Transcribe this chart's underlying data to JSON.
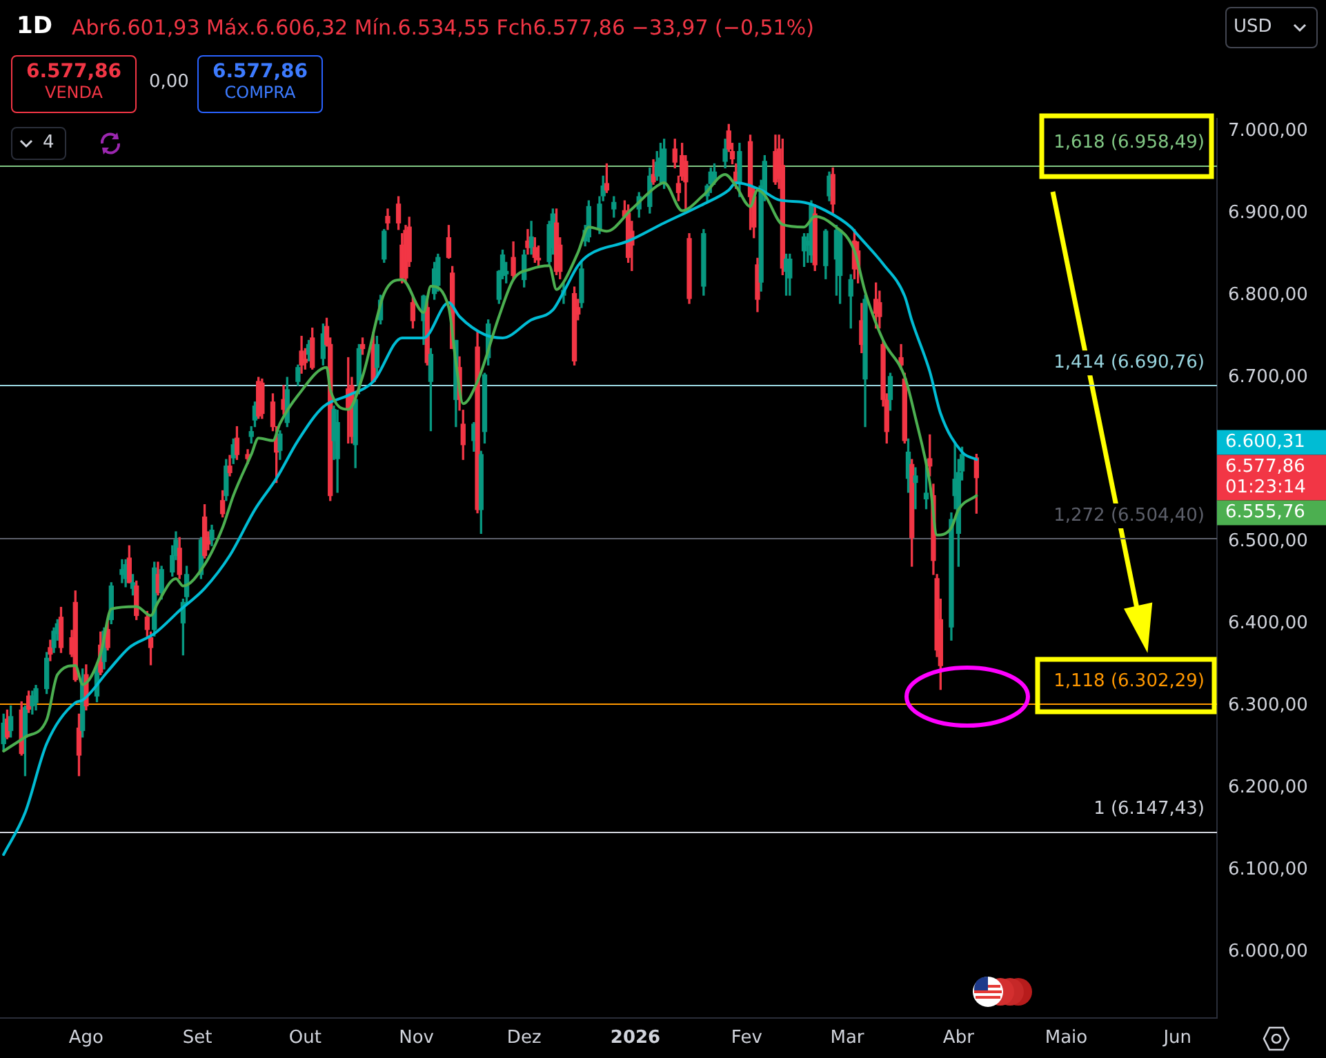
{
  "chart_data": {
    "type": "candlestick",
    "title": "1D",
    "subtitle": "Abr6.601,93 Máx.6.606,32 Mín.6.534,55 Fch6.577,86 −33,97 (−0,51%)",
    "x": [
      "2025-07-09",
      "2025-07-10",
      "2025-07-11",
      "2025-07-14",
      "2025-07-15",
      "2025-07-16",
      "2025-07-17",
      "2025-07-18",
      "2025-07-21",
      "2025-07-22",
      "2025-07-23",
      "2025-07-24",
      "2025-07-25",
      "2025-07-28",
      "2025-07-29",
      "2025-07-30",
      "2025-07-31",
      "2025-08-01",
      "2025-08-04",
      "2025-08-05",
      "2025-08-06",
      "2025-08-07",
      "2025-08-08",
      "2025-08-11",
      "2025-08-12",
      "2025-08-13",
      "2025-08-14",
      "2025-08-15",
      "2025-08-18",
      "2025-08-19",
      "2025-08-20",
      "2025-08-21",
      "2025-08-22",
      "2025-08-25",
      "2025-08-26",
      "2025-08-27",
      "2025-08-28",
      "2025-08-29",
      "2025-09-02",
      "2025-09-03",
      "2025-09-04",
      "2025-09-05",
      "2025-09-08",
      "2025-09-09",
      "2025-09-10",
      "2025-09-11",
      "2025-09-12",
      "2025-09-15",
      "2025-09-16",
      "2025-09-17",
      "2025-09-18",
      "2025-09-19",
      "2025-09-22",
      "2025-09-23",
      "2025-09-24",
      "2025-09-25",
      "2025-09-26",
      "2025-09-29",
      "2025-09-30",
      "2025-10-01",
      "2025-10-02",
      "2025-10-03",
      "2025-10-06",
      "2025-10-07",
      "2025-10-08",
      "2025-10-09",
      "2025-10-10",
      "2025-10-13",
      "2025-10-14",
      "2025-10-15",
      "2025-10-16",
      "2025-10-17",
      "2025-10-20",
      "2025-10-21",
      "2025-10-22",
      "2025-10-23",
      "2025-10-24",
      "2025-10-27",
      "2025-10-28",
      "2025-10-29",
      "2025-10-30",
      "2025-10-31",
      "2025-11-03",
      "2025-11-04",
      "2025-11-05",
      "2025-11-06",
      "2025-11-07",
      "2025-11-10",
      "2025-11-11",
      "2025-11-12",
      "2025-11-13",
      "2025-11-14",
      "2025-11-17",
      "2025-11-18",
      "2025-11-19",
      "2025-11-20",
      "2025-11-21",
      "2025-11-24",
      "2025-11-25",
      "2025-11-26",
      "2025-11-28",
      "2025-12-01",
      "2025-12-02",
      "2025-12-03",
      "2025-12-04",
      "2025-12-05",
      "2025-12-08",
      "2025-12-09",
      "2025-12-10",
      "2025-12-11",
      "2025-12-12",
      "2025-12-15",
      "2025-12-16",
      "2025-12-17",
      "2025-12-18",
      "2025-12-19",
      "2025-12-22",
      "2025-12-23",
      "2025-12-24",
      "2025-12-26",
      "2025-12-29",
      "2025-12-30",
      "2025-12-31",
      "2026-01-02",
      "2026-01-05",
      "2026-01-06",
      "2026-01-07",
      "2026-01-08",
      "2026-01-09",
      "2026-01-12",
      "2026-01-13",
      "2026-01-14",
      "2026-01-15",
      "2026-01-16",
      "2026-01-20",
      "2026-01-21",
      "2026-01-22",
      "2026-01-23",
      "2026-01-26",
      "2026-01-27",
      "2026-01-28",
      "2026-01-29",
      "2026-01-30",
      "2026-02-02",
      "2026-02-03",
      "2026-02-04",
      "2026-02-05",
      "2026-02-06",
      "2026-02-09",
      "2026-02-10",
      "2026-02-11",
      "2026-02-12",
      "2026-02-13",
      "2026-02-17",
      "2026-02-18",
      "2026-02-19",
      "2026-02-20",
      "2026-02-23",
      "2026-02-24",
      "2026-02-25",
      "2026-02-26",
      "2026-02-27",
      "2026-03-02",
      "2026-03-03",
      "2026-03-04",
      "2026-03-05",
      "2026-03-06",
      "2026-03-09",
      "2026-03-10",
      "2026-03-11",
      "2026-03-12",
      "2026-03-13",
      "2026-03-16",
      "2026-03-17",
      "2026-03-18",
      "2026-03-19",
      "2026-03-20",
      "2026-03-23",
      "2026-03-24",
      "2026-03-25",
      "2026-03-26",
      "2026-03-27",
      "2026-03-30",
      "2026-03-31",
      "2026-04-01",
      "2026-04-02",
      "2026-04-06"
    ],
    "ohlc": [
      [
        6254,
        6290,
        6245,
        6279
      ],
      [
        6284,
        6295,
        6260,
        6262
      ],
      [
        6270,
        6300,
        6262,
        6287
      ],
      [
        6295,
        6305,
        6240,
        6242
      ],
      [
        6262,
        6300,
        6215,
        6298
      ],
      [
        6312,
        6318,
        6292,
        6296
      ],
      [
        6300,
        6318,
        6290,
        6312
      ],
      [
        6304,
        6325,
        6295,
        6321
      ],
      [
        6321,
        6365,
        6315,
        6358
      ],
      [
        6371,
        6380,
        6355,
        6363
      ],
      [
        6371,
        6395,
        6365,
        6391
      ],
      [
        6388,
        6405,
        6380,
        6400
      ],
      [
        6408,
        6420,
        6365,
        6371
      ],
      [
        6383,
        6392,
        6360,
        6363
      ],
      [
        6426,
        6440,
        6330,
        6332
      ],
      [
        6273,
        6290,
        6215,
        6240
      ],
      [
        6270,
        6345,
        6262,
        6329
      ],
      [
        6338,
        6350,
        6295,
        6300
      ],
      [
        6312,
        6350,
        6305,
        6346
      ],
      [
        6374,
        6390,
        6338,
        6341
      ],
      [
        6354,
        6395,
        6345,
        6391
      ],
      [
        6393,
        6405,
        6368,
        6371
      ],
      [
        6405,
        6450,
        6400,
        6446
      ],
      [
        6460,
        6478,
        6450,
        6466
      ],
      [
        6455,
        6478,
        6445,
        6472
      ],
      [
        6480,
        6495,
        6450,
        6450
      ],
      [
        6443,
        6460,
        6435,
        6450
      ],
      [
        6446,
        6452,
        6405,
        6410
      ],
      [
        6408,
        6415,
        6385,
        6393
      ],
      [
        6383,
        6390,
        6350,
        6371
      ],
      [
        6393,
        6475,
        6385,
        6468
      ],
      [
        6460,
        6475,
        6435,
        6438
      ],
      [
        6438,
        6470,
        6430,
        6466
      ],
      [
        6463,
        6495,
        6458,
        6483
      ],
      [
        6483,
        6512,
        6478,
        6502
      ],
      [
        6492,
        6505,
        6455,
        6460
      ],
      [
        6401,
        6430,
        6362,
        6426
      ],
      [
        6433,
        6470,
        6425,
        6460
      ],
      [
        6460,
        6505,
        6455,
        6502
      ],
      [
        6530,
        6545,
        6480,
        6483
      ],
      [
        6505,
        6512,
        6490,
        6497
      ],
      [
        6502,
        6520,
        6495,
        6514
      ],
      [
        6550,
        6562,
        6530,
        6534
      ],
      [
        6556,
        6600,
        6550,
        6592
      ],
      [
        6592,
        6605,
        6580,
        6584
      ],
      [
        6602,
        6625,
        6595,
        6618
      ],
      [
        6626,
        6640,
        6600,
        6606
      ],
      [
        6606,
        6612,
        6595,
        6601
      ],
      [
        6628,
        6640,
        6620,
        6634
      ],
      [
        6648,
        6670,
        6640,
        6665
      ],
      [
        6695,
        6700,
        6650,
        6653
      ],
      [
        6693,
        6698,
        6650,
        6656
      ],
      [
        6670,
        6680,
        6635,
        6640
      ],
      [
        6626,
        6640,
        6572,
        6609
      ],
      [
        6611,
        6635,
        6600,
        6631
      ],
      [
        6673,
        6690,
        6655,
        6661
      ],
      [
        6645,
        6700,
        6640,
        6685
      ],
      [
        6695,
        6715,
        6690,
        6712
      ],
      [
        6732,
        6750,
        6705,
        6715
      ],
      [
        6722,
        6735,
        6710,
        6718
      ],
      [
        6728,
        6745,
        6720,
        6740
      ],
      [
        6748,
        6760,
        6710,
        6712
      ],
      [
        6723,
        6765,
        6715,
        6753
      ],
      [
        6762,
        6772,
        6738,
        6740
      ],
      [
        6740,
        6748,
        6550,
        6556
      ],
      [
        6623,
        6665,
        6600,
        6661
      ],
      [
        6601,
        6660,
        6560,
        6645
      ],
      [
        6686,
        6724,
        6620,
        6661
      ],
      [
        6690,
        6700,
        6620,
        6628
      ],
      [
        6618,
        6680,
        6590,
        6673
      ],
      [
        6690,
        6740,
        6680,
        6735
      ],
      [
        6740,
        6748,
        6728,
        6735
      ],
      [
        6740,
        6755,
        6695,
        6695
      ],
      [
        6712,
        6750,
        6700,
        6740
      ],
      [
        6770,
        6800,
        6765,
        6794
      ],
      [
        6844,
        6880,
        6840,
        6878
      ],
      [
        6896,
        6905,
        6880,
        6888
      ],
      [
        6911,
        6920,
        6880,
        6888
      ],
      [
        6861,
        6875,
        6815,
        6821
      ],
      [
        6879,
        6885,
        6815,
        6821
      ],
      [
        6883,
        6895,
        6835,
        6841
      ],
      [
        6791,
        6800,
        6760,
        6769
      ],
      [
        6769,
        6800,
        6740,
        6799
      ],
      [
        6785,
        6795,
        6715,
        6718
      ],
      [
        6695,
        6735,
        6635,
        6728
      ],
      [
        6802,
        6840,
        6795,
        6832
      ],
      [
        6812,
        6850,
        6805,
        6846
      ],
      [
        6870,
        6885,
        6845,
        6846
      ],
      [
        6827,
        6835,
        6735,
        6735
      ],
      [
        6673,
        6745,
        6640,
        6745
      ],
      [
        6712,
        6725,
        6660,
        6673
      ],
      [
        6643,
        6660,
        6600,
        6618
      ],
      [
        6623,
        6645,
        6610,
        6643
      ],
      [
        6737,
        6755,
        6535,
        6539
      ],
      [
        6539,
        6610,
        6510,
        6606
      ],
      [
        6634,
        6705,
        6620,
        6703
      ],
      [
        6724,
        6770,
        6715,
        6765
      ],
      [
        6795,
        6830,
        6790,
        6829
      ],
      [
        6824,
        6855,
        6820,
        6849
      ],
      [
        6826,
        6840,
        6815,
        6829
      ],
      [
        6846,
        6865,
        6820,
        6824
      ],
      [
        6819,
        6855,
        6810,
        6849
      ],
      [
        6866,
        6880,
        6850,
        6858
      ],
      [
        6858,
        6890,
        6850,
        6871
      ],
      [
        6858,
        6870,
        6840,
        6846
      ],
      [
        6845,
        6860,
        6835,
        6843
      ],
      [
        6841,
        6890,
        6835,
        6886
      ],
      [
        6858,
        6905,
        6850,
        6899
      ],
      [
        6888,
        6905,
        6825,
        6829
      ],
      [
        6861,
        6870,
        6820,
        6829
      ],
      [
        6800,
        6815,
        6790,
        6806
      ],
      [
        6802,
        6810,
        6715,
        6720
      ],
      [
        6785,
        6795,
        6770,
        6777
      ],
      [
        6791,
        6840,
        6785,
        6832
      ],
      [
        6866,
        6885,
        6860,
        6879
      ],
      [
        6871,
        6915,
        6865,
        6908
      ],
      [
        6881,
        6920,
        6875,
        6911
      ],
      [
        6921,
        6945,
        6915,
        6933
      ],
      [
        6936,
        6960,
        6925,
        6928
      ],
      [
        6905,
        6920,
        6895,
        6913
      ],
      [
        6903,
        6915,
        6895,
        6896
      ],
      [
        6900,
        6910,
        6840,
        6846
      ],
      [
        6878,
        6890,
        6830,
        6861
      ],
      [
        6905,
        6925,
        6895,
        6920
      ],
      [
        6908,
        6955,
        6900,
        6945
      ],
      [
        6947,
        6965,
        6935,
        6938
      ],
      [
        6945,
        6975,
        6940,
        6962
      ],
      [
        6945,
        6985,
        6935,
        6967
      ],
      [
        6938,
        6990,
        6930,
        6978
      ],
      [
        6978,
        6990,
        6955,
        6962
      ],
      [
        6936,
        6945,
        6915,
        6925
      ],
      [
        6970,
        6985,
        6940,
        6945
      ],
      [
        6963,
        6970,
        6905,
        6938
      ],
      [
        6869,
        6875,
        6790,
        6796
      ],
      [
        6811,
        6880,
        6800,
        6875
      ],
      [
        6921,
        6935,
        6915,
        6933
      ],
      [
        6936,
        6955,
        6925,
        6950
      ],
      [
        6942,
        6960,
        6935,
        6950
      ],
      [
        6963,
        6990,
        6955,
        6978
      ],
      [
        7000,
        7008,
        6975,
        6978
      ],
      [
        6975,
        6985,
        6960,
        6966
      ],
      [
        6950,
        6960,
        6930,
        6938
      ],
      [
        6936,
        6985,
        6920,
        6975
      ],
      [
        6987,
        6995,
        6880,
        6920
      ],
      [
        6920,
        6930,
        6870,
        6883
      ],
      [
        6837,
        6845,
        6780,
        6795
      ],
      [
        6816,
        6940,
        6805,
        6933
      ],
      [
        6925,
        6970,
        6915,
        6963
      ],
      [
        6975,
        6995,
        6935,
        6938
      ],
      [
        6978,
        6995,
        6930,
        6942
      ],
      [
        6958,
        6990,
        6825,
        6833
      ],
      [
        6829,
        6850,
        6800,
        6844
      ],
      [
        6821,
        6850,
        6800,
        6844
      ],
      [
        6854,
        6875,
        6835,
        6871
      ],
      [
        6861,
        6875,
        6840,
        6866
      ],
      [
        6849,
        6915,
        6840,
        6911
      ],
      [
        6899,
        6910,
        6830,
        6837
      ],
      [
        6836,
        6880,
        6820,
        6878
      ],
      [
        6921,
        6950,
        6915,
        6945
      ],
      [
        6947,
        6955,
        6900,
        6911
      ],
      [
        6844,
        6885,
        6800,
        6879
      ],
      [
        6824,
        6880,
        6790,
        6879
      ],
      [
        6799,
        6825,
        6760,
        6819
      ],
      [
        6866,
        6880,
        6820,
        6832
      ],
      [
        6854,
        6865,
        6815,
        6832
      ],
      [
        6769,
        6790,
        6730,
        6740
      ],
      [
        6698,
        6800,
        6640,
        6795
      ],
      [
        6795,
        6815,
        6760,
        6778
      ],
      [
        6791,
        6805,
        6760,
        6774
      ],
      [
        6740,
        6745,
        6665,
        6673
      ],
      [
        6673,
        6680,
        6620,
        6634
      ],
      [
        6673,
        6705,
        6660,
        6701
      ],
      [
        6724,
        6740,
        6710,
        6715
      ],
      [
        6698,
        6705,
        6620,
        6623
      ],
      [
        6577,
        6625,
        6560,
        6609
      ],
      [
        6594,
        6600,
        6470,
        6505
      ],
      [
        6572,
        6590,
        6540,
        6580
      ],
      [
        6552,
        6600,
        6540,
        6559
      ],
      [
        6601,
        6630,
        6580,
        6592
      ],
      [
        6556,
        6570,
        6460,
        6477
      ],
      [
        6455,
        6460,
        6360,
        6368
      ],
      [
        6405,
        6430,
        6320,
        6349
      ],
      [
        6396,
        6535,
        6380,
        6527
      ],
      [
        6556,
        6620,
        6540,
        6576
      ],
      [
        6510,
        6600,
        6470,
        6584
      ],
      [
        6586,
        6615,
        6575,
        6606
      ],
      [
        6601.93,
        6606.32,
        6534.55,
        6577.86
      ]
    ],
    "series": [
      {
        "type": "line",
        "color": "#4caf50",
        "x": [
          "2025-07-09",
          "2025-07-15",
          "2025-07-21",
          "2025-07-24",
          "2025-07-29",
          "2025-07-31",
          "2025-08-05",
          "2025-08-08",
          "2025-08-15",
          "2025-08-19",
          "2025-08-21",
          "2025-08-26",
          "2025-08-28",
          "2025-09-03",
          "2025-09-08",
          "2025-09-11",
          "2025-09-16",
          "2025-09-18",
          "2025-09-22",
          "2025-09-24",
          "2025-09-29",
          "2025-10-07",
          "2025-10-08",
          "2025-10-13",
          "2025-10-17",
          "2025-10-23",
          "2025-10-28",
          "2025-11-03",
          "2025-11-05",
          "2025-11-10",
          "2025-11-12",
          "2025-11-14",
          "2025-11-18",
          "2025-11-24",
          "2025-11-28",
          "2025-12-03",
          "2025-12-08",
          "2025-12-10",
          "2025-12-12",
          "2025-12-16",
          "2025-12-19",
          "2025-12-24",
          "2025-12-31",
          "2026-01-07",
          "2026-01-09",
          "2026-01-14",
          "2026-01-20",
          "2026-01-26",
          "2026-01-29",
          "2026-02-02",
          "2026-02-04",
          "2026-02-06",
          "2026-02-11",
          "2026-02-17",
          "2026-02-20",
          "2026-02-25",
          "2026-03-03",
          "2026-03-06",
          "2026-03-11",
          "2026-03-17",
          "2026-03-20",
          "2026-03-24",
          "2026-03-26",
          "2026-03-30",
          "2026-04-01",
          "2026-04-06"
        ],
        "values": [
          6245,
          6262,
          6283,
          6338,
          6349,
          6326,
          6363,
          6418,
          6421,
          6410,
          6426,
          6455,
          6446,
          6472,
          6517,
          6556,
          6606,
          6626,
          6623,
          6644,
          6678,
          6712,
          6685,
          6661,
          6701,
          6802,
          6819,
          6779,
          6811,
          6785,
          6718,
          6668,
          6695,
          6774,
          6819,
          6832,
          6836,
          6807,
          6816,
          6852,
          6883,
          6878,
          6905,
          6933,
          6937,
          6903,
          6922,
          6947,
          6933,
          6908,
          6928,
          6922,
          6886,
          6883,
          6896,
          6886,
          6854,
          6804,
          6745,
          6701,
          6651,
          6572,
          6508,
          6517,
          6539,
          6556
        ]
      },
      {
        "type": "line",
        "color": "#00bcd4",
        "x": [
          "2025-07-09",
          "2025-07-15",
          "2025-07-21",
          "2025-07-29",
          "2025-07-31",
          "2025-08-07",
          "2025-08-13",
          "2025-08-20",
          "2025-08-27",
          "2025-09-03",
          "2025-09-10",
          "2025-09-17",
          "2025-09-23",
          "2025-09-29",
          "2025-10-06",
          "2025-10-13",
          "2025-10-20",
          "2025-10-28",
          "2025-11-03",
          "2025-11-10",
          "2025-11-13",
          "2025-11-20",
          "2025-11-25",
          "2025-12-03",
          "2025-12-09",
          "2025-12-12",
          "2025-12-16",
          "2025-12-19",
          "2025-12-30",
          "2026-01-09",
          "2026-01-20",
          "2026-01-27",
          "2026-01-29",
          "2026-02-05",
          "2026-02-10",
          "2026-02-17",
          "2026-02-23",
          "2026-03-02",
          "2026-03-04",
          "2026-03-11",
          "2026-03-17",
          "2026-03-19",
          "2026-03-24",
          "2026-03-27",
          "2026-04-02",
          "2026-04-06"
        ],
        "values": [
          6119,
          6170,
          6254,
          6304,
          6307,
          6342,
          6371,
          6388,
          6416,
          6443,
          6483,
          6539,
          6577,
          6623,
          6664,
          6678,
          6695,
          6748,
          6748,
          6791,
          6774,
          6752,
          6748,
          6770,
          6782,
          6804,
          6836,
          6849,
          6866,
          6888,
          6911,
          6928,
          6937,
          6928,
          6916,
          6913,
          6903,
          6883,
          6873,
          6838,
          6799,
          6769,
          6707,
          6656,
          6609,
          6600
        ]
      }
    ],
    "xlim": [
      "2025-07-08",
      "2026-06-12"
    ],
    "xticks": [
      {
        "value": "2025-08-01",
        "label": "Ago"
      },
      {
        "value": "2025-09-01",
        "label": "Set"
      },
      {
        "value": "2025-10-01",
        "label": "Out"
      },
      {
        "value": "2025-11-01",
        "label": "Nov"
      },
      {
        "value": "2025-12-01",
        "label": "Dez"
      },
      {
        "value": "2026-01-01",
        "label": "2026"
      },
      {
        "value": "2026-02-01",
        "label": "Fev"
      },
      {
        "value": "2026-03-01",
        "label": "Mar"
      },
      {
        "value": "2026-04-01",
        "label": "Abr"
      },
      {
        "value": "2026-05-01",
        "label": "Maio"
      },
      {
        "value": "2026-06-01",
        "label": "Jun"
      }
    ],
    "ylim": [
      5920,
      7015
    ],
    "yticks": [
      {
        "value": 6000,
        "label": "6.000,00"
      },
      {
        "value": 6100,
        "label": "6.100,00"
      },
      {
        "value": 6200,
        "label": "6.200,00"
      },
      {
        "value": 6300,
        "label": "6.300,00"
      },
      {
        "value": 6400,
        "label": "6.400,00"
      },
      {
        "value": 6500,
        "label": "6.500,00"
      },
      {
        "value": 6700,
        "label": "6.700,00"
      },
      {
        "value": 6800,
        "label": "6.800,00"
      },
      {
        "value": 6900,
        "label": "6.900,00"
      },
      {
        "value": 7000,
        "label": "7.000,00"
      }
    ],
    "ref_lines": [
      {
        "axis": "y",
        "value": 6958.49,
        "label": "1,618 (6.958,49)",
        "color": "#81c784"
      },
      {
        "axis": "y",
        "value": 6690.76,
        "label": "1,414 (6.690,76)",
        "color": "#9ad6e0"
      },
      {
        "axis": "y",
        "value": 6504.4,
        "label": "1,272 (6.504,40)",
        "color": "#5d606b"
      },
      {
        "axis": "y",
        "value": 6302.29,
        "label": "1,118 (6.302,29)",
        "color": "#ff9800"
      },
      {
        "axis": "y",
        "value": 6147.43,
        "label": "1 (6.147,43)",
        "color": "#d1d4dc"
      }
    ],
    "annotations": [
      "6.577,86",
      "VENDA",
      "0,00",
      "6.577,86",
      "COMPRA",
      "4",
      "USD",
      "6.600,31",
      "6.577,86\n01:23:14",
      "6.555,76"
    ],
    "grid": false
  }
}
